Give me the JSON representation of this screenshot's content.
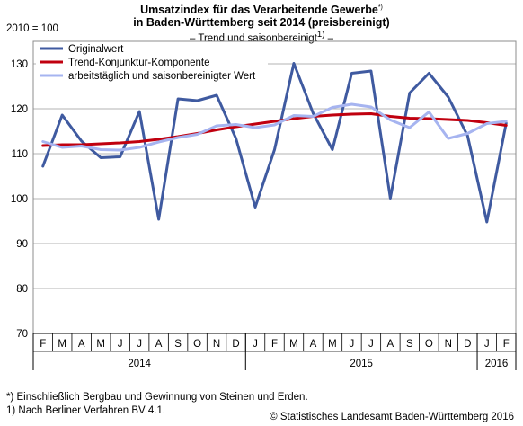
{
  "chart_data": {
    "type": "line",
    "title_line1": "Umsatzindex für das Verarbeitende Gewerbe",
    "title_line1_mark": "*)",
    "title_line2": "in Baden-Württemberg seit 2014 (preisbereinigt)",
    "subtitle_text": "– Trend und saisonbereinigt",
    "subtitle_mark": "1)",
    "subtitle_end": " –",
    "ylabel": "2010 = 100",
    "ylim": [
      70,
      135
    ],
    "yticks": [
      70,
      80,
      90,
      100,
      110,
      120,
      130
    ],
    "grid": true,
    "legend_position": "top-left",
    "x": [
      "F",
      "M",
      "A",
      "M",
      "J",
      "J",
      "A",
      "S",
      "O",
      "N",
      "D",
      "J",
      "F",
      "M",
      "A",
      "M",
      "J",
      "J",
      "A",
      "S",
      "O",
      "N",
      "D",
      "J",
      "F"
    ],
    "year_groups": [
      {
        "label": "2014",
        "start": 0,
        "end": 10
      },
      {
        "label": "2015",
        "start": 11,
        "end": 22
      },
      {
        "label": "2016",
        "start": 23,
        "end": 24
      }
    ],
    "series": [
      {
        "name": "Originalwert",
        "color": "#3f5aa0",
        "width": 3,
        "values": [
          107.2,
          118.6,
          112.8,
          109.1,
          109.3,
          119.4,
          95.4,
          122.2,
          121.8,
          123.0,
          113.4,
          98.1,
          110.9,
          130.1,
          119.0,
          110.9,
          127.9,
          128.4,
          100.1,
          123.5,
          127.9,
          122.6,
          114.0,
          94.8,
          116.8
        ]
      },
      {
        "name": "Trend-Konjunktur-Komponente",
        "color": "#c0000f",
        "width": 3,
        "values": [
          111.8,
          112.0,
          112.0,
          112.2,
          112.4,
          112.7,
          113.2,
          113.8,
          114.5,
          115.3,
          116.0,
          116.6,
          117.2,
          117.8,
          118.3,
          118.6,
          118.8,
          118.9,
          118.3,
          117.9,
          117.8,
          117.6,
          117.4,
          116.9,
          116.3
        ]
      },
      {
        "name": "arbeitstäglich und saisonbereinigter Wert",
        "color": "#a6b4f0",
        "width": 3,
        "values": [
          112.7,
          111.4,
          111.7,
          110.9,
          110.8,
          111.4,
          112.6,
          113.6,
          114.3,
          116.2,
          116.5,
          115.8,
          116.4,
          118.5,
          118.3,
          120.3,
          121.0,
          120.4,
          117.5,
          115.8,
          119.3,
          113.4,
          114.5,
          116.7,
          117.2
        ]
      }
    ]
  },
  "footnotes": [
    {
      "mark": "*)",
      "text": " Einschließlich Bergbau und Gewinnung von Steinen und Erden."
    },
    {
      "mark": "1)",
      "text": " Nach Berliner Verfahren BV 4.1."
    }
  ],
  "copyright": "© Statistisches Landesamt Baden-Württemberg 2016"
}
